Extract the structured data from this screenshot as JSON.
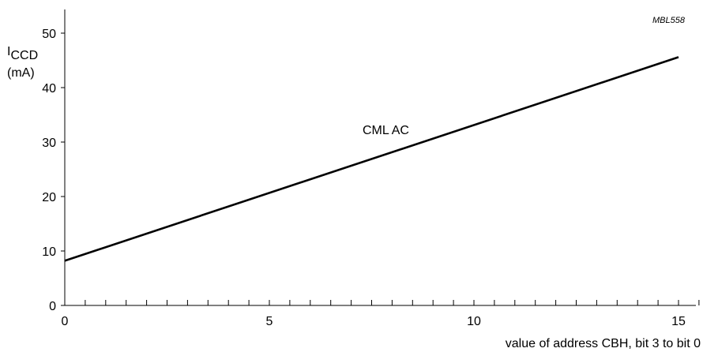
{
  "chart_data": {
    "type": "line",
    "figure_code": "MBL558",
    "ylabel": {
      "main": "I",
      "subscript": "CCD",
      "unit": "(mA)"
    },
    "xlabel": "value of address CBH, bit 3 to bit 0",
    "xlim": [
      0,
      15.5
    ],
    "ylim": [
      0,
      55
    ],
    "xticks_major": [
      0,
      5,
      10,
      15
    ],
    "xticks_minor": [
      0.5,
      1,
      1.5,
      2,
      2.5,
      3,
      3.5,
      4,
      4.5,
      5.5,
      6,
      6.5,
      7,
      7.5,
      8,
      8.5,
      9,
      9.5,
      10.5,
      11,
      11.5,
      12,
      12.5,
      13,
      13.5,
      14,
      14.5,
      15.5
    ],
    "yticks": [
      0,
      10,
      20,
      30,
      40,
      50
    ],
    "grid": false,
    "legend": "none",
    "series": [
      {
        "name": "CML AC",
        "x": [
          0,
          15
        ],
        "y": [
          8.2,
          45.6
        ],
        "color": "#000000"
      }
    ]
  }
}
